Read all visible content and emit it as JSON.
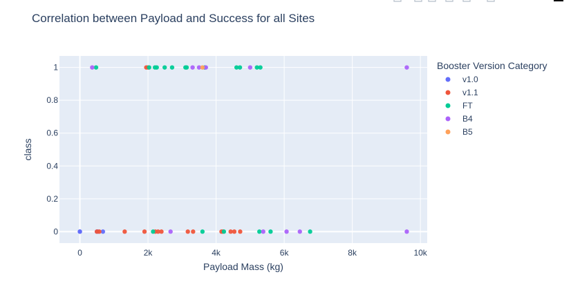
{
  "chart_data": {
    "type": "scatter",
    "title": "Correlation between Payload and Success for all Sites",
    "xlabel": "Payload Mass (kg)",
    "ylabel": "class",
    "xlim": [
      -600,
      10200
    ],
    "ylim": [
      -0.07,
      1.07
    ],
    "xticks": [
      0,
      2000,
      4000,
      6000,
      8000,
      10000
    ],
    "xtick_labels": [
      "0",
      "2k",
      "4k",
      "6k",
      "8k",
      "10k"
    ],
    "yticks": [
      0,
      0.2,
      0.4,
      0.6,
      0.8,
      1
    ],
    "ytick_labels": [
      "0",
      "0.2",
      "0.4",
      "0.6",
      "0.8",
      "1"
    ],
    "grid": true,
    "legend_title": "Booster Version Category",
    "legend_position": "right",
    "series": [
      {
        "name": "v1.0",
        "color": "#636efa",
        "points": [
          [
            0,
            0
          ],
          [
            0,
            0
          ],
          [
            525,
            0
          ],
          [
            677,
            0
          ],
          [
            500,
            0
          ]
        ]
      },
      {
        "name": "v1.1",
        "color": "#EF553B",
        "points": [
          [
            1950,
            1
          ],
          [
            2000,
            1
          ],
          [
            500,
            0
          ],
          [
            570,
            0
          ],
          [
            1316,
            0
          ],
          [
            1898,
            0
          ],
          [
            2216,
            0
          ],
          [
            2296,
            0
          ],
          [
            2395,
            0
          ],
          [
            3170,
            0
          ],
          [
            3325,
            0
          ],
          [
            4159,
            0
          ],
          [
            4200,
            0
          ],
          [
            4428,
            0
          ],
          [
            4535,
            0
          ],
          [
            4707,
            0
          ]
        ]
      },
      {
        "name": "FT",
        "color": "#00cc96",
        "points": [
          [
            475,
            1
          ],
          [
            2034,
            1
          ],
          [
            2205,
            1
          ],
          [
            2257,
            1
          ],
          [
            2490,
            1
          ],
          [
            2708,
            1
          ],
          [
            3100,
            1
          ],
          [
            3136,
            1
          ],
          [
            3669,
            1
          ],
          [
            4600,
            1
          ],
          [
            4700,
            1
          ],
          [
            5200,
            1
          ],
          [
            5300,
            1
          ],
          [
            2150,
            0
          ],
          [
            3600,
            0
          ],
          [
            4230,
            0
          ],
          [
            5271,
            0
          ],
          [
            5600,
            0
          ],
          [
            6761,
            0
          ]
        ]
      },
      {
        "name": "B4",
        "color": "#ab63fa",
        "points": [
          [
            362,
            1
          ],
          [
            3310,
            1
          ],
          [
            3500,
            1
          ],
          [
            3700,
            1
          ],
          [
            5000,
            1
          ],
          [
            9600,
            1
          ],
          [
            2663,
            0
          ],
          [
            5384,
            0
          ],
          [
            6070,
            0
          ],
          [
            6460,
            0
          ],
          [
            9600,
            0
          ]
        ]
      },
      {
        "name": "B5",
        "color": "#FFA15A",
        "points": [
          [
            3600,
            1
          ]
        ]
      }
    ]
  },
  "icons": [
    "zoom-icon",
    "pan-icon",
    "zoom-in-icon",
    "zoom-out-icon",
    "autoscale-icon",
    "reset-axes-icon",
    "plotly-logo-icon"
  ]
}
